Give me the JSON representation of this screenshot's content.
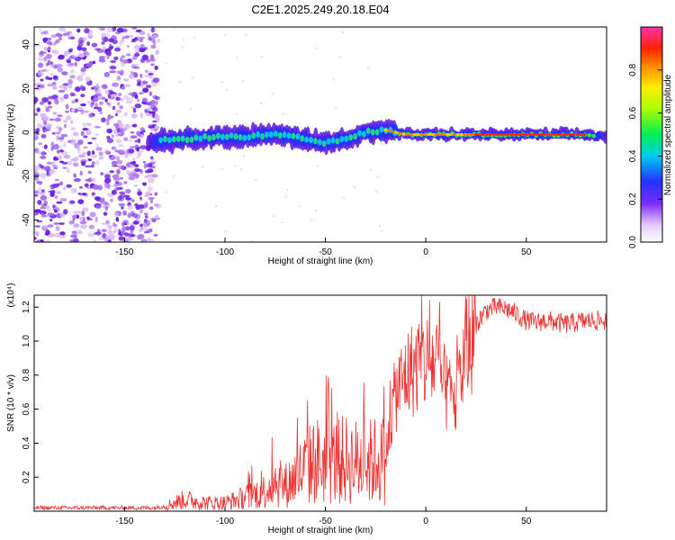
{
  "figure_title": "C2E1.2025.249.20.18.E04",
  "chart_data": [
    {
      "type": "heatmap",
      "xlabel": "Height of straight line (km)",
      "ylabel": "Frequency (Hz)",
      "xlim": [
        -195,
        90
      ],
      "ylim": [
        -50,
        48
      ],
      "x_ticks": [
        -150,
        -100,
        -50,
        0,
        50
      ],
      "y_ticks": [
        -40,
        -20,
        0,
        20,
        40
      ],
      "colorbar": {
        "label": "Normalized spectral amplitude",
        "range": [
          0,
          1
        ],
        "ticks": [
          0.0,
          0.2,
          0.4,
          0.6,
          0.8
        ]
      },
      "track": {
        "x": [
          -135,
          -120,
          -105,
          -90,
          -75,
          -60,
          -50,
          -40,
          -30,
          -20,
          -10,
          0,
          20,
          40,
          60,
          80,
          90
        ],
        "y": [
          -4,
          -3,
          -2,
          -2,
          -1,
          -3,
          -5,
          -3,
          0,
          1,
          -1,
          -1,
          -1,
          -1,
          -1,
          -1,
          -2
        ]
      }
    },
    {
      "type": "line",
      "xlabel": "Height of straight line (km)",
      "ylabel": "SNR (10 * v/v)",
      "y_scale_label": "(x10⁴)",
      "xlim": [
        -195,
        90
      ],
      "ylim": [
        0,
        1.27
      ],
      "x_ticks": [
        -150,
        -100,
        -50,
        0,
        50
      ],
      "y_ticks": [
        0.2,
        0.4,
        0.6,
        0.8,
        1.0,
        1.2
      ],
      "series": [
        {
          "name": "SNR",
          "color": "#ee3333",
          "x": [
            -195,
            -170,
            -150,
            -135,
            -130,
            -125,
            -120,
            -110,
            -100,
            -90,
            -80,
            -75,
            -70,
            -60,
            -55,
            -50,
            -40,
            -30,
            -25,
            -20,
            -18,
            -15,
            -12,
            -10,
            -5,
            0,
            5,
            10,
            15,
            20,
            25,
            30,
            35,
            40,
            45,
            50,
            55,
            60,
            70,
            80,
            90
          ],
          "values": [
            0.02,
            0.02,
            0.02,
            0.02,
            0.03,
            0.05,
            0.07,
            0.05,
            0.05,
            0.08,
            0.12,
            0.18,
            0.15,
            0.25,
            0.3,
            0.28,
            0.3,
            0.28,
            0.3,
            0.3,
            0.5,
            0.7,
            0.75,
            0.8,
            0.85,
            0.88,
            0.87,
            0.7,
            0.65,
            0.95,
            1.1,
            1.18,
            1.2,
            1.19,
            1.16,
            1.12,
            1.11,
            1.12,
            1.1,
            1.12,
            1.12
          ]
        }
      ]
    }
  ]
}
